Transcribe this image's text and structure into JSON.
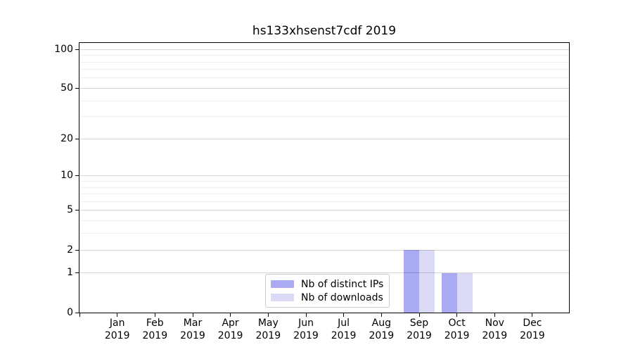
{
  "title": "hs133xhsenst7cdf 2019",
  "chart_data": {
    "type": "bar",
    "title": "hs133xhsenst7cdf 2019",
    "categories": [
      "Jan 2019",
      "Feb 2019",
      "Mar 2019",
      "Apr 2019",
      "May 2019",
      "Jun 2019",
      "Jul 2019",
      "Aug 2019",
      "Sep 2019",
      "Oct 2019",
      "Nov 2019",
      "Dec 2019"
    ],
    "month_labels": [
      "Jan",
      "Feb",
      "Mar",
      "Apr",
      "May",
      "Jun",
      "Jul",
      "Aug",
      "Sep",
      "Oct",
      "Nov",
      "Dec"
    ],
    "year_label": "2019",
    "series": [
      {
        "name": "Nb of distinct IPs",
        "color": "#a9a9f4",
        "values": [
          0,
          0,
          0,
          0,
          0,
          0,
          0,
          0,
          2,
          1,
          0,
          0
        ]
      },
      {
        "name": "Nb of downloads",
        "color": "#dadaf7",
        "values": [
          0,
          0,
          0,
          0,
          0,
          0,
          0,
          0,
          2,
          1,
          0,
          0
        ]
      }
    ],
    "y_axis": {
      "scale": "log1p",
      "major_ticks": [
        0,
        1,
        2,
        5,
        10,
        20,
        50,
        100
      ],
      "minor_gridlines": [
        3,
        4,
        6,
        7,
        8,
        9,
        30,
        40,
        60,
        70,
        80,
        90
      ],
      "max": 112
    },
    "x_axis": {
      "has_unlabeled_edge_tick": true
    },
    "legend": {
      "position": "inside-lower-center"
    },
    "grid": "horizontal, major and minor, drawn over bars",
    "colors": {
      "major_grid": "rgba(0,0,0,0.17)",
      "minor_grid": "rgba(0,0,0,0.065)",
      "spine": "#000000",
      "background": "#ffffff"
    }
  }
}
